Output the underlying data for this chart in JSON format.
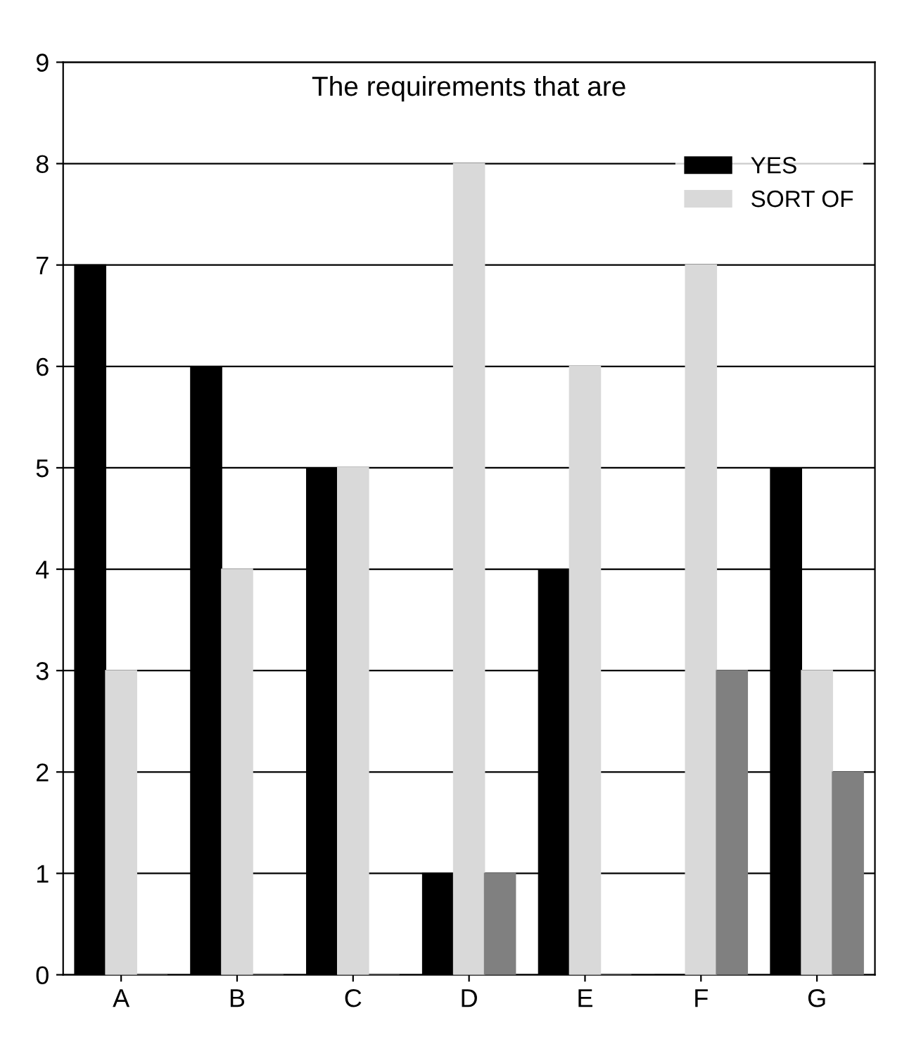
{
  "chart_data": {
    "type": "bar",
    "title": "The requirements that are",
    "categories": [
      "A",
      "B",
      "C",
      "D",
      "E",
      "F",
      "G"
    ],
    "series": [
      {
        "name": "YES",
        "color": "#000000",
        "values": [
          7,
          6,
          5,
          1,
          4,
          0,
          5
        ]
      },
      {
        "name": "SORT OF",
        "color": "#d9d9d9",
        "values": [
          3,
          4,
          5,
          8,
          6,
          7,
          3
        ]
      },
      {
        "color": "#808080",
        "values": [
          0,
          0,
          0,
          1,
          0,
          3,
          2
        ]
      }
    ],
    "ylim": [
      0,
      9
    ],
    "yticks": [
      0,
      1,
      2,
      3,
      4,
      5,
      6,
      7,
      8,
      9
    ],
    "grid": "y",
    "legend": "top right"
  }
}
